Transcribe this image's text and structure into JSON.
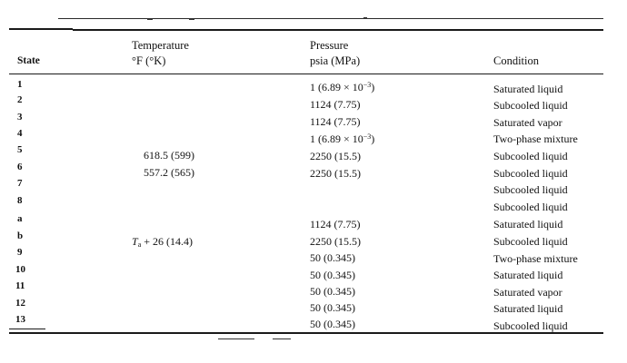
{
  "table": {
    "headers": {
      "state": "State",
      "temperature_line1": "Temperature",
      "temperature_line2": "°F (°K)",
      "pressure_line1": "Pressure",
      "pressure_line2": "psia (MPa)",
      "condition": "Condition"
    },
    "states": [
      "1",
      "2",
      "3",
      "4",
      "5",
      "6",
      "7",
      "8",
      "a",
      "b",
      "9",
      "10",
      "11",
      "12",
      "13"
    ],
    "temperatures": [
      {
        "row": 5,
        "text": "618.5 (599)"
      },
      {
        "row": 6,
        "text": "557.2 (565)"
      }
    ],
    "temperature_b": {
      "symbol": "T",
      "subscript": "a",
      "rest": " + 26 (14.4)"
    },
    "pressures": [
      {
        "base": "1 (6.89 × 10",
        "exp": "−3",
        "close": ")"
      },
      {
        "base": "1124 (7.75)"
      },
      {
        "base": "1124 (7.75)"
      },
      {
        "base": "1 (6.89 × 10",
        "exp": "−3",
        "close": ")"
      },
      {
        "base": "2250 (15.5)"
      },
      {
        "base": "2250 (15.5)"
      },
      {
        "base": "1124 (7.75)"
      },
      {
        "base": "2250 (15.5)"
      },
      {
        "base": "50 (0.345)"
      },
      {
        "base": "50 (0.345)"
      },
      {
        "base": "50 (0.345)"
      },
      {
        "base": "50 (0.345)"
      },
      {
        "base": "50 (0.345)"
      }
    ],
    "conditions": [
      "Saturated liquid",
      "Subcooled liquid",
      "Saturated vapor",
      "Two-phase mixture",
      "Subcooled liquid",
      "Subcooled liquid",
      "Subcooled liquid",
      "Subcooled liquid",
      "Saturated liquid",
      "Subcooled liquid",
      "Two-phase mixture",
      "Saturated liquid",
      "Saturated vapor",
      "Saturated liquid",
      "Subcooled liquid"
    ]
  }
}
